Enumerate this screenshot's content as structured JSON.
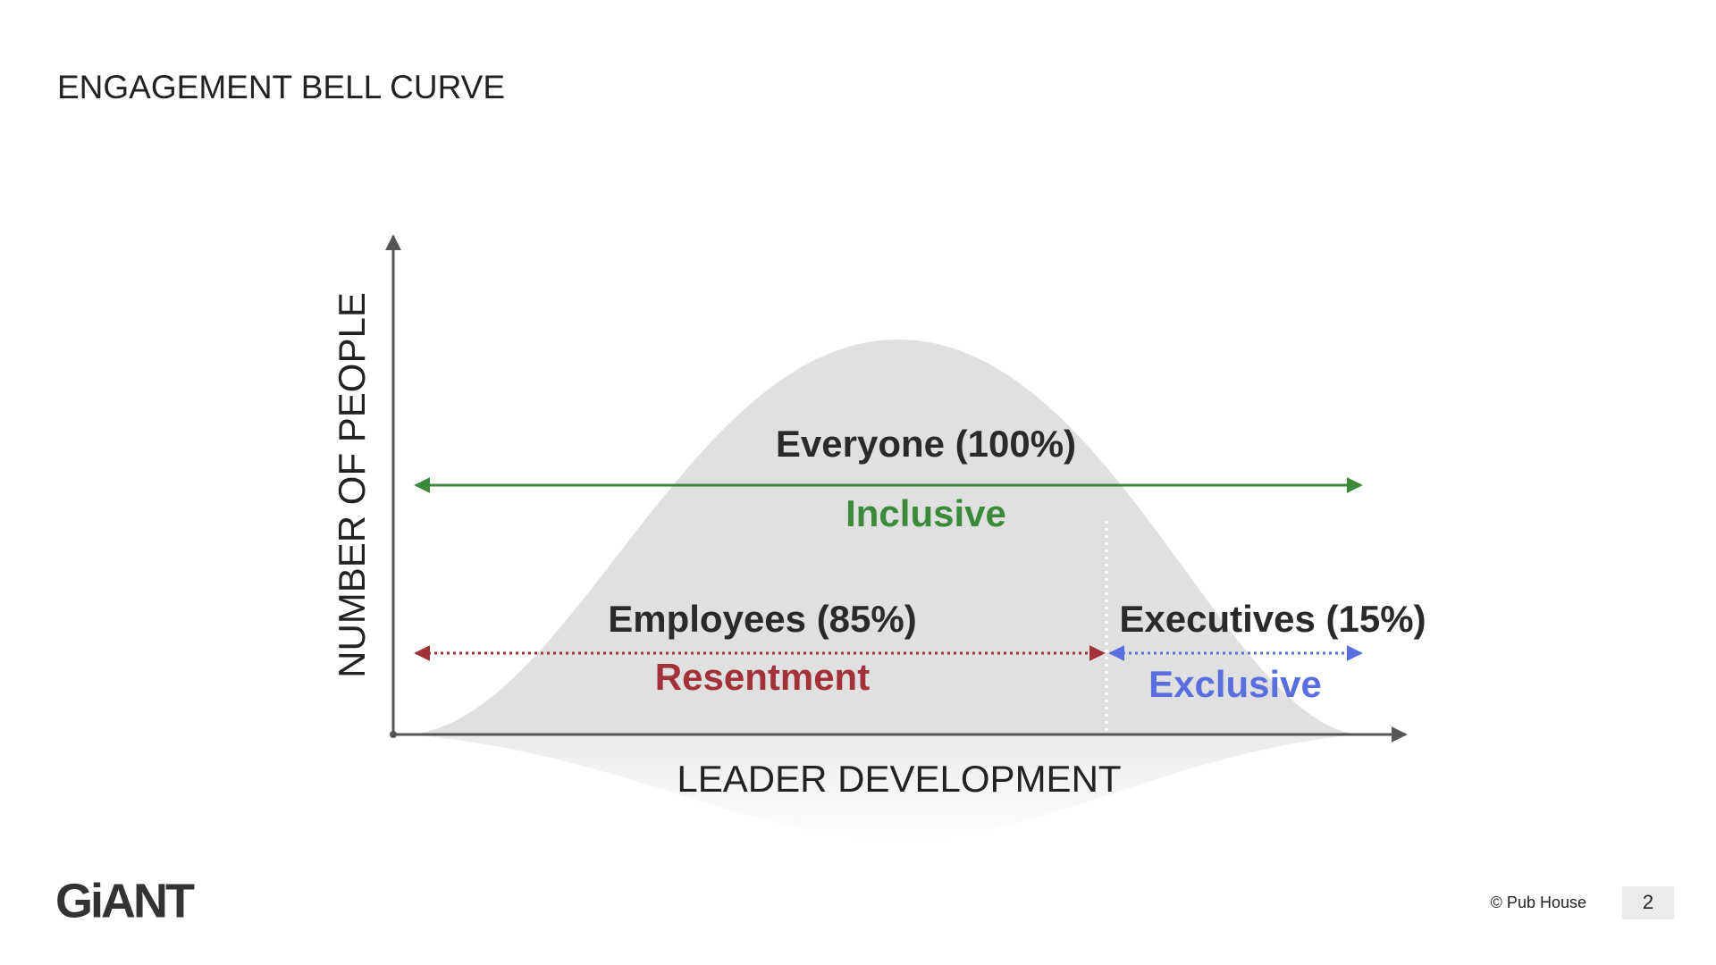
{
  "header": {
    "title": "ENGAGEMENT BELL CURVE"
  },
  "diagram": {
    "y_axis_label": "NUMBER OF PEOPLE",
    "x_axis_label": "LEADER DEVELOPMENT",
    "everyone": {
      "label": "Everyone (100%)",
      "caption": "Inclusive"
    },
    "employees": {
      "label": "Employees (85%)",
      "caption": "Resentment"
    },
    "executives": {
      "label": "Executives (15%)",
      "caption": "Exclusive"
    }
  },
  "footer": {
    "logo": "GiANT",
    "copyright": "© Pub House",
    "page_number": "2"
  }
}
